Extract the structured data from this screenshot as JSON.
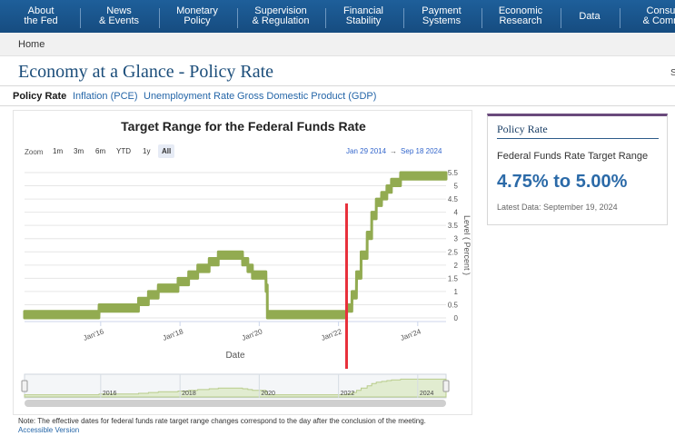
{
  "nav": [
    {
      "l1": "About",
      "l2": "the Fed"
    },
    {
      "l1": "News",
      "l2": "& Events"
    },
    {
      "l1": "Monetary",
      "l2": "Policy"
    },
    {
      "l1": "Supervision",
      "l2": "& Regulation"
    },
    {
      "l1": "Financial",
      "l2": "Stability"
    },
    {
      "l1": "Payment",
      "l2": "Systems"
    },
    {
      "l1": "Economic",
      "l2": "Research"
    },
    {
      "l1": "Data",
      "l2": ""
    },
    {
      "l1": "Consum",
      "l2": "& Commu"
    }
  ],
  "breadcrumb": "Home",
  "page": {
    "title": "Economy at a Glance - Policy Rate",
    "edge_char": "S"
  },
  "tabs": [
    {
      "label": "Policy Rate",
      "active": true
    },
    {
      "label": "Inflation (PCE)",
      "active": false
    },
    {
      "label": "Unemployment Rate",
      "active": false
    },
    {
      "label": "Gross Domestic Product (GDP)",
      "active": false
    }
  ],
  "chart_controls": {
    "zoom_label": "Zoom",
    "zoom_buttons": [
      {
        "label": "1m",
        "active": false
      },
      {
        "label": "3m",
        "active": false
      },
      {
        "label": "6m",
        "active": false
      },
      {
        "label": "YTD",
        "active": false
      },
      {
        "label": "1y",
        "active": false
      },
      {
        "label": "All",
        "active": true
      }
    ],
    "range_from": "Jan 29 2014",
    "range_arrow": "→",
    "range_to": "Sep 18 2024"
  },
  "chart_data": {
    "type": "area",
    "title": "Target Range for the Federal Funds Rate",
    "xlabel": "Date",
    "ylabel": "Level ( Percent )",
    "xlim": [
      "2014-01-29",
      "2024-09-18"
    ],
    "ylim": [
      0,
      5.5
    ],
    "yticks": [
      "0",
      "0.5",
      "1",
      "1.5",
      "2",
      "2.5",
      "3",
      "3.5",
      "4",
      "4.5",
      "5",
      "5.5"
    ],
    "xticks": [
      "Jan'16",
      "Jan'18",
      "Jan'20",
      "Jan'22",
      "Jan'24"
    ],
    "navigator_ticks": [
      "2016",
      "2018",
      "2020",
      "2022",
      "2024"
    ],
    "grid": true,
    "series": [
      {
        "color": "#92ab51",
        "points": [
          [
            "2014-01-29",
            0,
            0.25
          ],
          [
            "2015-12-16",
            0,
            0.25
          ],
          [
            "2015-12-17",
            0.25,
            0.5
          ],
          [
            "2016-12-14",
            0.25,
            0.5
          ],
          [
            "2016-12-15",
            0.5,
            0.75
          ],
          [
            "2017-03-15",
            0.5,
            0.75
          ],
          [
            "2017-03-16",
            0.75,
            1.0
          ],
          [
            "2017-06-14",
            0.75,
            1.0
          ],
          [
            "2017-06-15",
            1.0,
            1.25
          ],
          [
            "2017-12-13",
            1.0,
            1.25
          ],
          [
            "2017-12-14",
            1.25,
            1.5
          ],
          [
            "2018-03-21",
            1.25,
            1.5
          ],
          [
            "2018-03-22",
            1.5,
            1.75
          ],
          [
            "2018-06-13",
            1.5,
            1.75
          ],
          [
            "2018-06-14",
            1.75,
            2.0
          ],
          [
            "2018-09-26",
            1.75,
            2.0
          ],
          [
            "2018-09-27",
            2.0,
            2.25
          ],
          [
            "2018-12-19",
            2.0,
            2.25
          ],
          [
            "2018-12-20",
            2.25,
            2.5
          ],
          [
            "2019-07-31",
            2.25,
            2.5
          ],
          [
            "2019-08-01",
            2.0,
            2.25
          ],
          [
            "2019-09-18",
            2.0,
            2.25
          ],
          [
            "2019-09-19",
            1.75,
            2.0
          ],
          [
            "2019-10-30",
            1.75,
            2.0
          ],
          [
            "2019-10-31",
            1.5,
            1.75
          ],
          [
            "2020-03-03",
            1.5,
            1.75
          ],
          [
            "2020-03-04",
            1.0,
            1.25
          ],
          [
            "2020-03-15",
            1.0,
            1.25
          ],
          [
            "2020-03-16",
            0,
            0.25
          ],
          [
            "2022-03-16",
            0,
            0.25
          ],
          [
            "2022-03-17",
            0.25,
            0.5
          ],
          [
            "2022-05-04",
            0.25,
            0.5
          ],
          [
            "2022-05-05",
            0.75,
            1.0
          ],
          [
            "2022-06-15",
            0.75,
            1.0
          ],
          [
            "2022-06-16",
            1.5,
            1.75
          ],
          [
            "2022-07-27",
            1.5,
            1.75
          ],
          [
            "2022-07-28",
            2.25,
            2.5
          ],
          [
            "2022-09-21",
            2.25,
            2.5
          ],
          [
            "2022-09-22",
            3.0,
            3.25
          ],
          [
            "2022-11-02",
            3.0,
            3.25
          ],
          [
            "2022-11-03",
            3.75,
            4.0
          ],
          [
            "2022-12-14",
            3.75,
            4.0
          ],
          [
            "2022-12-15",
            4.25,
            4.5
          ],
          [
            "2023-02-01",
            4.25,
            4.5
          ],
          [
            "2023-02-02",
            4.5,
            4.75
          ],
          [
            "2023-03-22",
            4.5,
            4.75
          ],
          [
            "2023-03-23",
            4.75,
            5.0
          ],
          [
            "2023-05-03",
            4.75,
            5.0
          ],
          [
            "2023-05-04",
            5.0,
            5.25
          ],
          [
            "2023-07-26",
            5.0,
            5.25
          ],
          [
            "2023-07-27",
            5.25,
            5.5
          ],
          [
            "2024-09-18",
            5.25,
            5.5
          ]
        ]
      }
    ],
    "marker_line": {
      "date": "2022-03-16",
      "color": "#e8303b"
    }
  },
  "note": "Note: The effective dates for federal funds rate target range changes correspond to the day after the conclusion of the meeting.",
  "accessible_link": "Accessible Version",
  "sidecard": {
    "title": "Policy Rate",
    "label": "Federal Funds Rate Target Range",
    "value": "4.75% to 5.00%",
    "latest": "Latest Data: September 19, 2024"
  }
}
